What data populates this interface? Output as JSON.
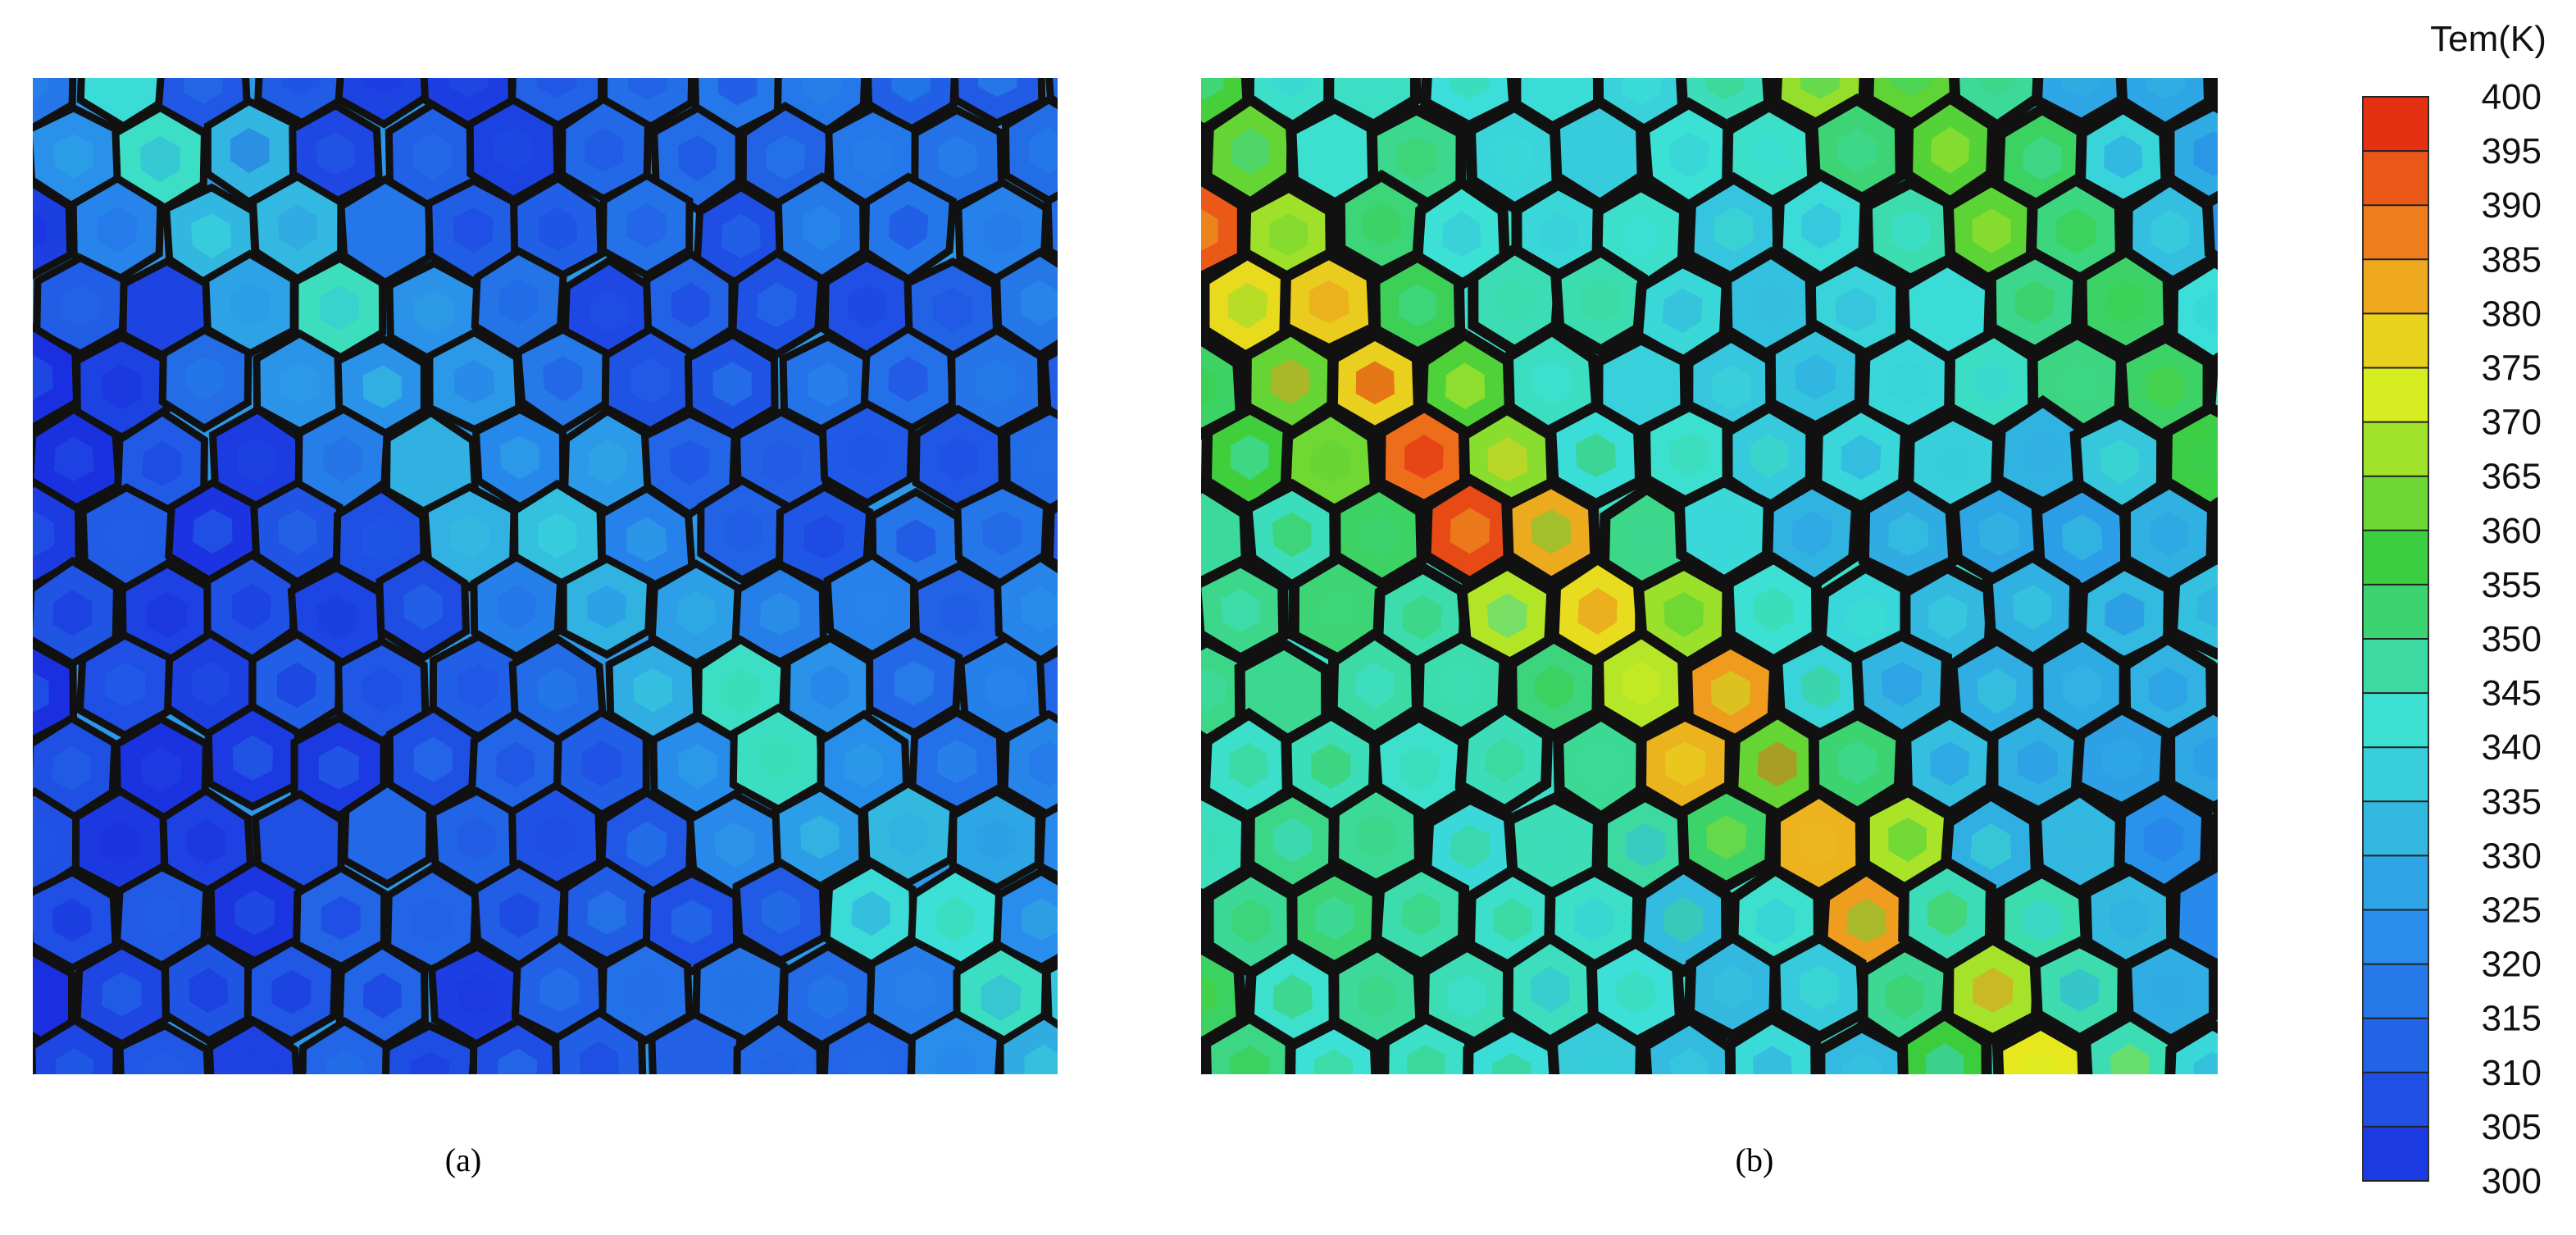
{
  "panels": [
    {
      "caption": "(a)"
    },
    {
      "caption": "(b)"
    }
  ],
  "colorbar": {
    "title": "Tem(K)",
    "ticks": [
      400,
      395,
      390,
      385,
      380,
      375,
      370,
      365,
      360,
      355,
      350,
      345,
      340,
      335,
      330,
      325,
      320,
      315,
      310,
      305,
      300
    ]
  }
}
